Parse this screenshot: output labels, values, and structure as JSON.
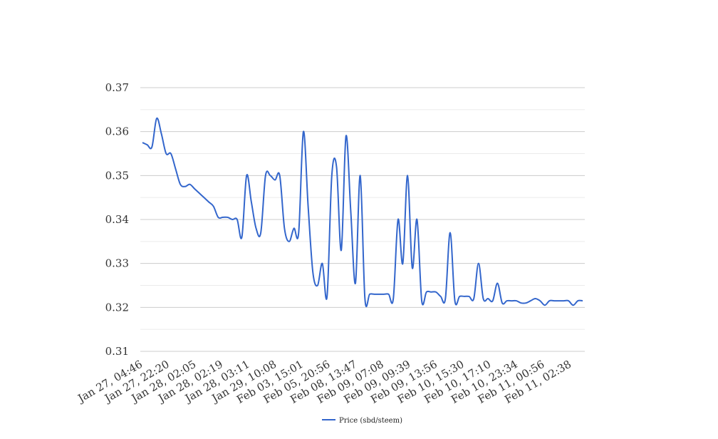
{
  "chart_data": {
    "type": "line",
    "title": "",
    "xlabel": "",
    "ylabel": "",
    "ylim": [
      0.31,
      0.37
    ],
    "yticks": [
      "0.31",
      "0.32",
      "0.33",
      "0.34",
      "0.35",
      "0.36",
      "0.37"
    ],
    "minor_gridlines": true,
    "legend_position": "bottom",
    "x_tick_labels": [
      "Jan 27, 04:46",
      "Jan 27, 22:20",
      "Jan 28, 02:05",
      "Jan 28, 02:19",
      "Jan 28, 03:11",
      "Jan 29, 10:08",
      "Feb 03, 15:01",
      "Feb 05, 20:56",
      "Feb 08, 13:47",
      "Feb 09, 07:08",
      "Feb 09, 09:39",
      "Feb 09, 13:56",
      "Feb 10, 15:30",
      "Feb 10, 17:10",
      "Feb 10, 23:34",
      "Feb 11, 00:56",
      "Feb 11, 02:38"
    ],
    "series": [
      {
        "name": "Price (sbd/steem)",
        "color": "#3366cc",
        "values": [
          0.3575,
          0.357,
          0.3565,
          0.363,
          0.3595,
          0.355,
          0.355,
          0.3515,
          0.348,
          0.3475,
          0.348,
          0.347,
          0.346,
          0.345,
          0.344,
          0.343,
          0.3405,
          0.3405,
          0.3405,
          0.34,
          0.34,
          0.336,
          0.35,
          0.344,
          0.338,
          0.337,
          0.35,
          0.35,
          0.349,
          0.35,
          0.338,
          0.335,
          0.338,
          0.337,
          0.36,
          0.343,
          0.328,
          0.325,
          0.33,
          0.3225,
          0.35,
          0.352,
          0.333,
          0.359,
          0.342,
          0.3255,
          0.35,
          0.322,
          0.323,
          0.323,
          0.323,
          0.323,
          0.323,
          0.322,
          0.34,
          0.33,
          0.35,
          0.329,
          0.34,
          0.3215,
          0.3235,
          0.3235,
          0.3235,
          0.3225,
          0.322,
          0.337,
          0.3215,
          0.3225,
          0.3225,
          0.3225,
          0.322,
          0.33,
          0.322,
          0.322,
          0.3215,
          0.3255,
          0.321,
          0.3215,
          0.3215,
          0.3215,
          0.321,
          0.321,
          0.3215,
          0.322,
          0.3215,
          0.3205,
          0.3215,
          0.3215,
          0.3215,
          0.3215,
          0.3215,
          0.3205,
          0.3215,
          0.3215
        ]
      }
    ]
  }
}
